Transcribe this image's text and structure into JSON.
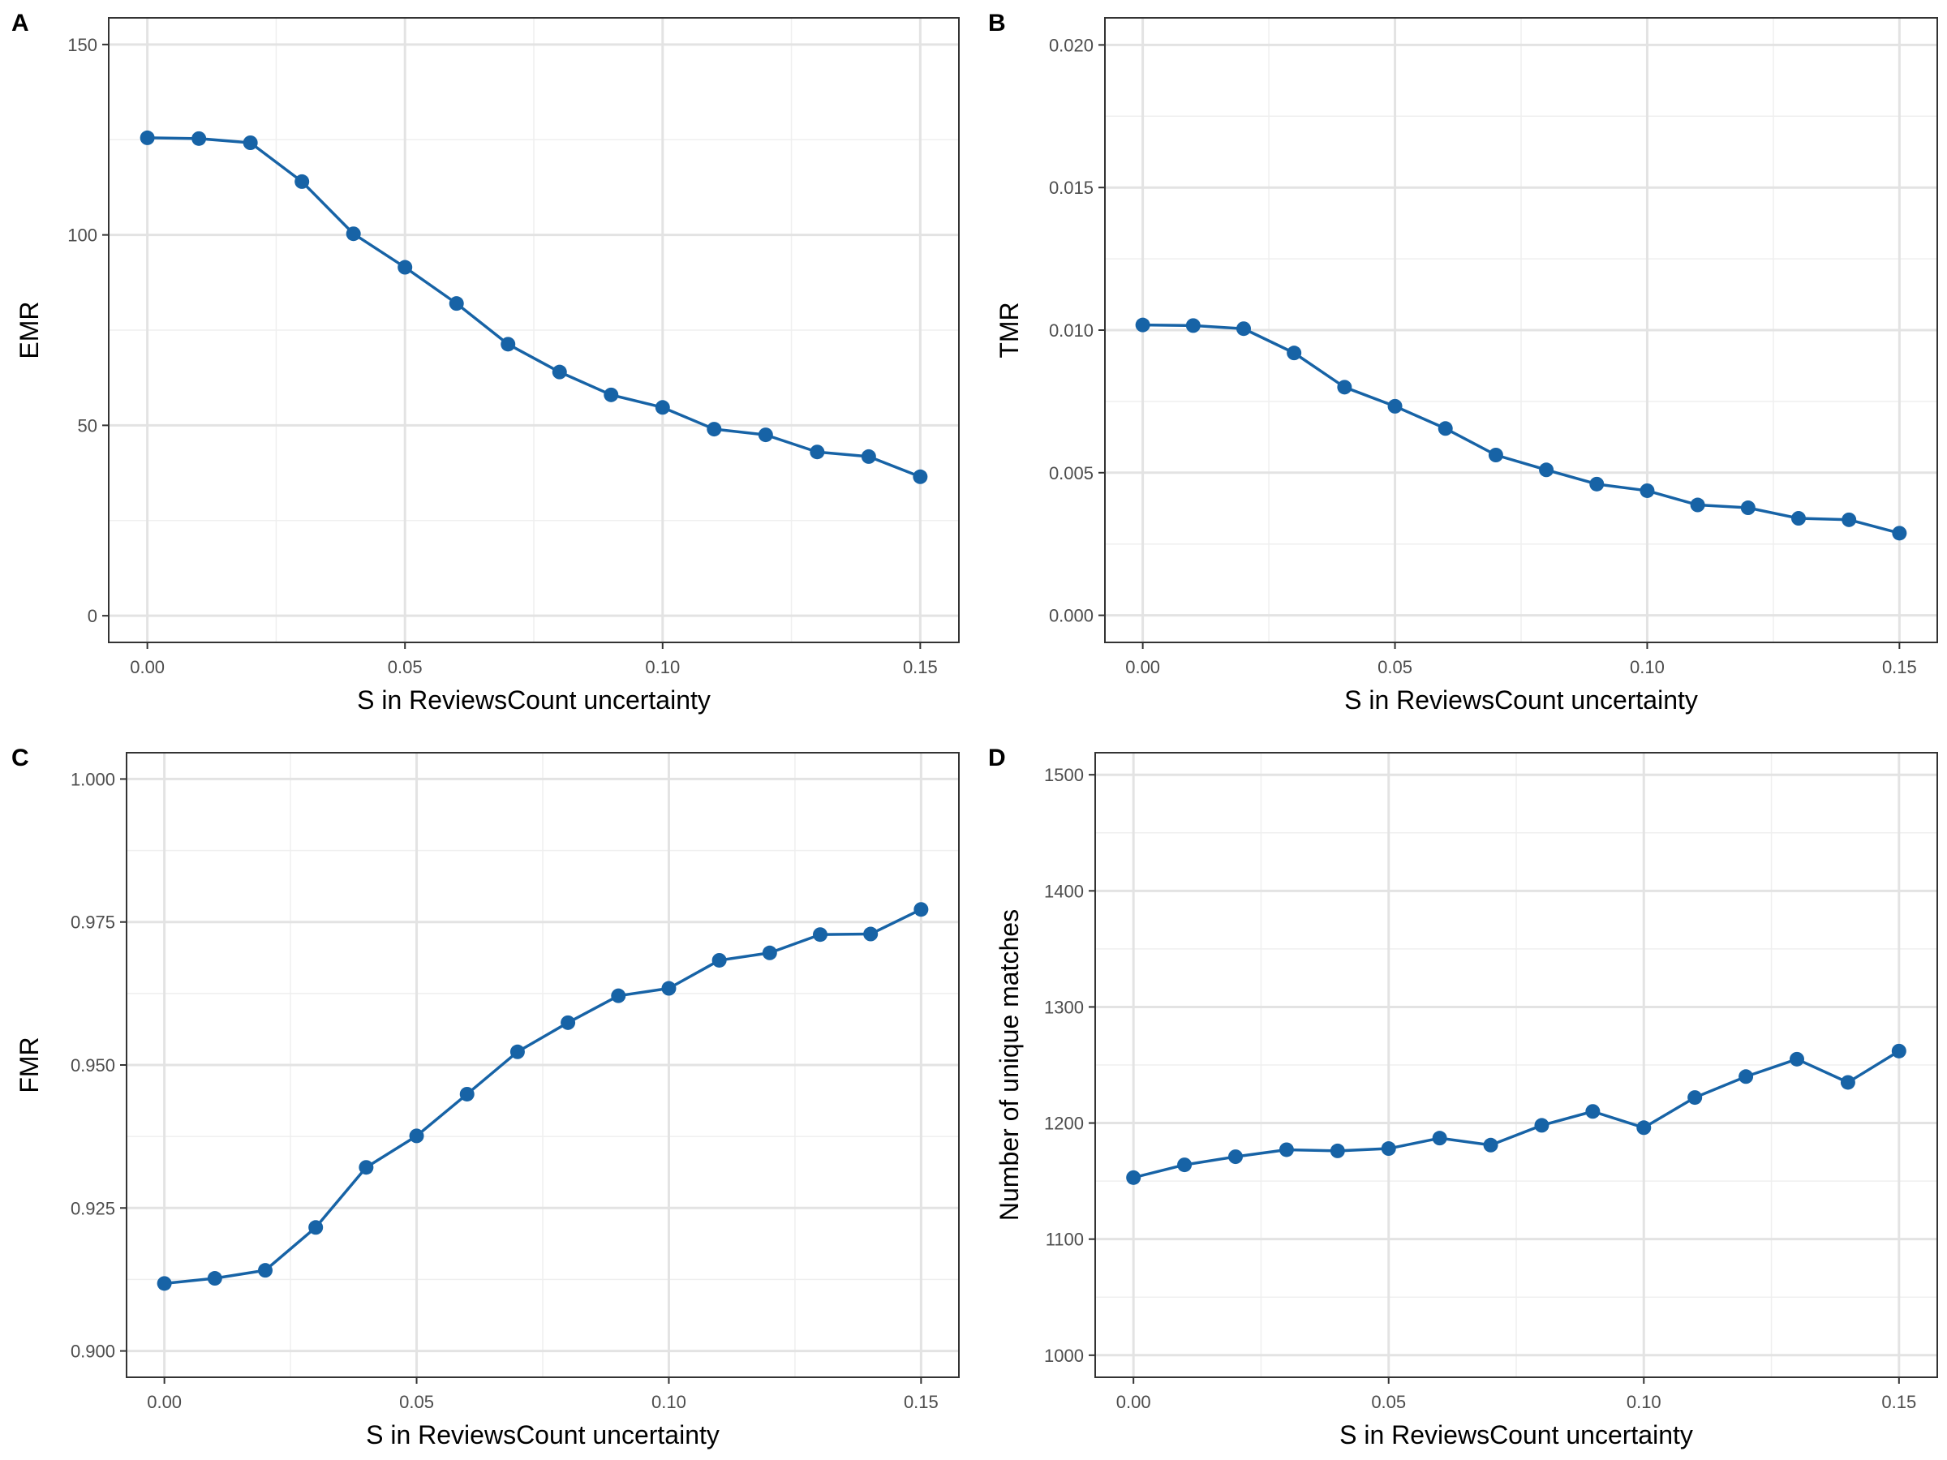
{
  "figure": {
    "point_color": "#1763a6",
    "line_color": "#1763a6",
    "grid_major_color": "#e3e3e3",
    "grid_minor_color": "#efefef",
    "panel_border_color": "#333333"
  },
  "chart_data": [
    {
      "tag": "A",
      "type": "line",
      "title": "",
      "xlabel": "S in ReviewsCount uncertainty",
      "ylabel": "EMR",
      "x": [
        0.0,
        0.01,
        0.02,
        0.03,
        0.04,
        0.05,
        0.06,
        0.07,
        0.08,
        0.09,
        0.1,
        0.11,
        0.12,
        0.13,
        0.14,
        0.15
      ],
      "values": [
        125.5,
        125.3,
        124.2,
        114.0,
        100.3,
        91.5,
        82.0,
        71.3,
        64.0,
        58.0,
        54.7,
        49.0,
        47.5,
        43.0,
        41.8,
        36.5
      ],
      "xlim": [
        -0.0075,
        0.1575
      ],
      "ylim": [
        -7,
        157
      ],
      "xticks": [
        0.0,
        0.05,
        0.1,
        0.15
      ],
      "xtick_labels": [
        "0.00",
        "0.05",
        "0.10",
        "0.15"
      ],
      "yticks": [
        0,
        50,
        100,
        150
      ],
      "ytick_labels": [
        "0",
        "50",
        "100",
        "150"
      ],
      "grid": true
    },
    {
      "tag": "B",
      "type": "line",
      "title": "",
      "xlabel": "S in ReviewsCount uncertainty",
      "ylabel": "TMR",
      "x": [
        0.0,
        0.01,
        0.02,
        0.03,
        0.04,
        0.05,
        0.06,
        0.07,
        0.08,
        0.09,
        0.1,
        0.11,
        0.12,
        0.13,
        0.14,
        0.15
      ],
      "values": [
        0.01018,
        0.01016,
        0.01005,
        0.0092,
        0.008,
        0.00733,
        0.00655,
        0.00562,
        0.0051,
        0.0046,
        0.00437,
        0.00387,
        0.00377,
        0.0034,
        0.00335,
        0.00288
      ],
      "xlim": [
        -0.0075,
        0.1575
      ],
      "ylim": [
        -0.00095,
        0.02095
      ],
      "xticks": [
        0.0,
        0.05,
        0.1,
        0.15
      ],
      "xtick_labels": [
        "0.00",
        "0.05",
        "0.10",
        "0.15"
      ],
      "yticks": [
        0.0,
        0.005,
        0.01,
        0.015,
        0.02
      ],
      "ytick_labels": [
        "0.000",
        "0.005",
        "0.010",
        "0.015",
        "0.020"
      ],
      "grid": true
    },
    {
      "tag": "C",
      "type": "line",
      "title": "",
      "xlabel": "S in ReviewsCount uncertainty",
      "ylabel": "FMR",
      "x": [
        0.0,
        0.01,
        0.02,
        0.03,
        0.04,
        0.05,
        0.06,
        0.07,
        0.08,
        0.09,
        0.1,
        0.11,
        0.12,
        0.13,
        0.14,
        0.15
      ],
      "values": [
        0.9118,
        0.9127,
        0.9141,
        0.9216,
        0.9321,
        0.9376,
        0.9449,
        0.9523,
        0.9574,
        0.9621,
        0.9634,
        0.9683,
        0.9696,
        0.9728,
        0.9729,
        0.9772
      ],
      "xlim": [
        -0.0075,
        0.1575
      ],
      "ylim": [
        0.8954,
        1.0046
      ],
      "xticks": [
        0.0,
        0.05,
        0.1,
        0.15
      ],
      "xtick_labels": [
        "0.00",
        "0.05",
        "0.10",
        "0.15"
      ],
      "yticks": [
        0.9,
        0.925,
        0.95,
        0.975,
        1.0
      ],
      "ytick_labels": [
        "0.900",
        "0.925",
        "0.950",
        "0.975",
        "1.000"
      ],
      "grid": true
    },
    {
      "tag": "D",
      "type": "line",
      "title": "",
      "xlabel": "S in ReviewsCount uncertainty",
      "ylabel": "Number of unique matches",
      "x": [
        0.0,
        0.01,
        0.02,
        0.03,
        0.04,
        0.05,
        0.06,
        0.07,
        0.08,
        0.09,
        0.1,
        0.11,
        0.12,
        0.13,
        0.14,
        0.15
      ],
      "values": [
        1153,
        1164,
        1171,
        1177,
        1176,
        1178,
        1187,
        1181,
        1198,
        1210,
        1196,
        1222,
        1240,
        1255,
        1235,
        1262
      ],
      "xlim": [
        -0.0075,
        0.1575
      ],
      "ylim": [
        981,
        1519
      ],
      "xticks": [
        0.0,
        0.05,
        0.1,
        0.15
      ],
      "xtick_labels": [
        "0.00",
        "0.05",
        "0.10",
        "0.15"
      ],
      "yticks": [
        1000,
        1100,
        1200,
        1300,
        1400,
        1500
      ],
      "ytick_labels": [
        "1000",
        "1100",
        "1200",
        "1300",
        "1400",
        "1500"
      ],
      "grid": true
    }
  ]
}
